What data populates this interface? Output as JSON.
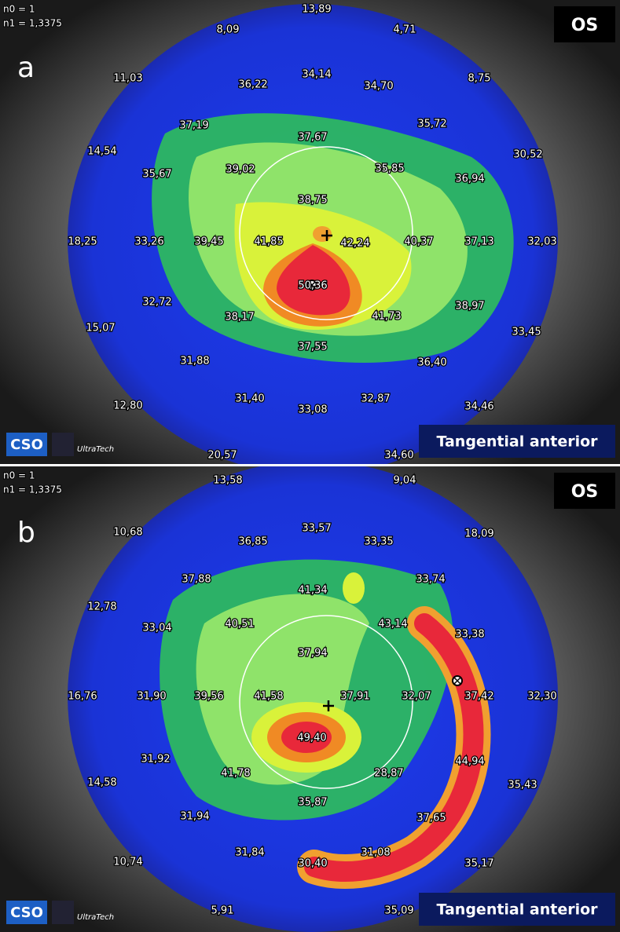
{
  "panels": [
    {
      "letter": "a",
      "eye": "OS",
      "n0": "n0 = 1",
      "n1": "n1 = 1,3375",
      "mode": "Tangential anterior",
      "logo": "CSO",
      "brand": "UltraTech",
      "readings": [
        "13,89",
        "8,09",
        "4,71",
        "11,03",
        "36,22",
        "34,14",
        "34,70",
        "8,75",
        "37,19",
        "37,67",
        "35,72",
        "14,54",
        "35,67",
        "39,02",
        "35,85",
        "36,94",
        "30,52",
        "38,75",
        "18,25",
        "33,26",
        "39,45",
        "41,85",
        "42,24",
        "40,37",
        "37,13",
        "32,03",
        "50,36",
        "32,72",
        "38,17",
        "41,73",
        "38,97",
        "15,07",
        "33,45",
        "37,55",
        "31,88",
        "36,40",
        "31,40",
        "33,08",
        "32,87",
        "12,80",
        "34,46",
        "20,57",
        "34,60"
      ]
    },
    {
      "letter": "b",
      "eye": "OS",
      "n0": "n0 = 1",
      "n1": "n1 = 1,3375",
      "mode": "Tangential anterior",
      "logo": "CSO",
      "brand": "UltraTech",
      "readings": [
        "13,58",
        "9,04",
        "10,68",
        "36,85",
        "33,57",
        "33,35",
        "18,09",
        "37,88",
        "41,34",
        "33,74",
        "12,78",
        "33,04",
        "40,51",
        "43,14",
        "33,38",
        "37,94",
        "16,76",
        "31,90",
        "39,56",
        "41,58",
        "37,91",
        "32,07",
        "37,42",
        "32,30",
        "49,40",
        "31,92",
        "41,78",
        "28,87",
        "44,94",
        "14,58",
        "35,43",
        "35,87",
        "31,94",
        "37,65",
        "31,84",
        "31,08",
        "30,40",
        "10,74",
        "35,17",
        "5,91",
        "35,09"
      ]
    }
  ]
}
